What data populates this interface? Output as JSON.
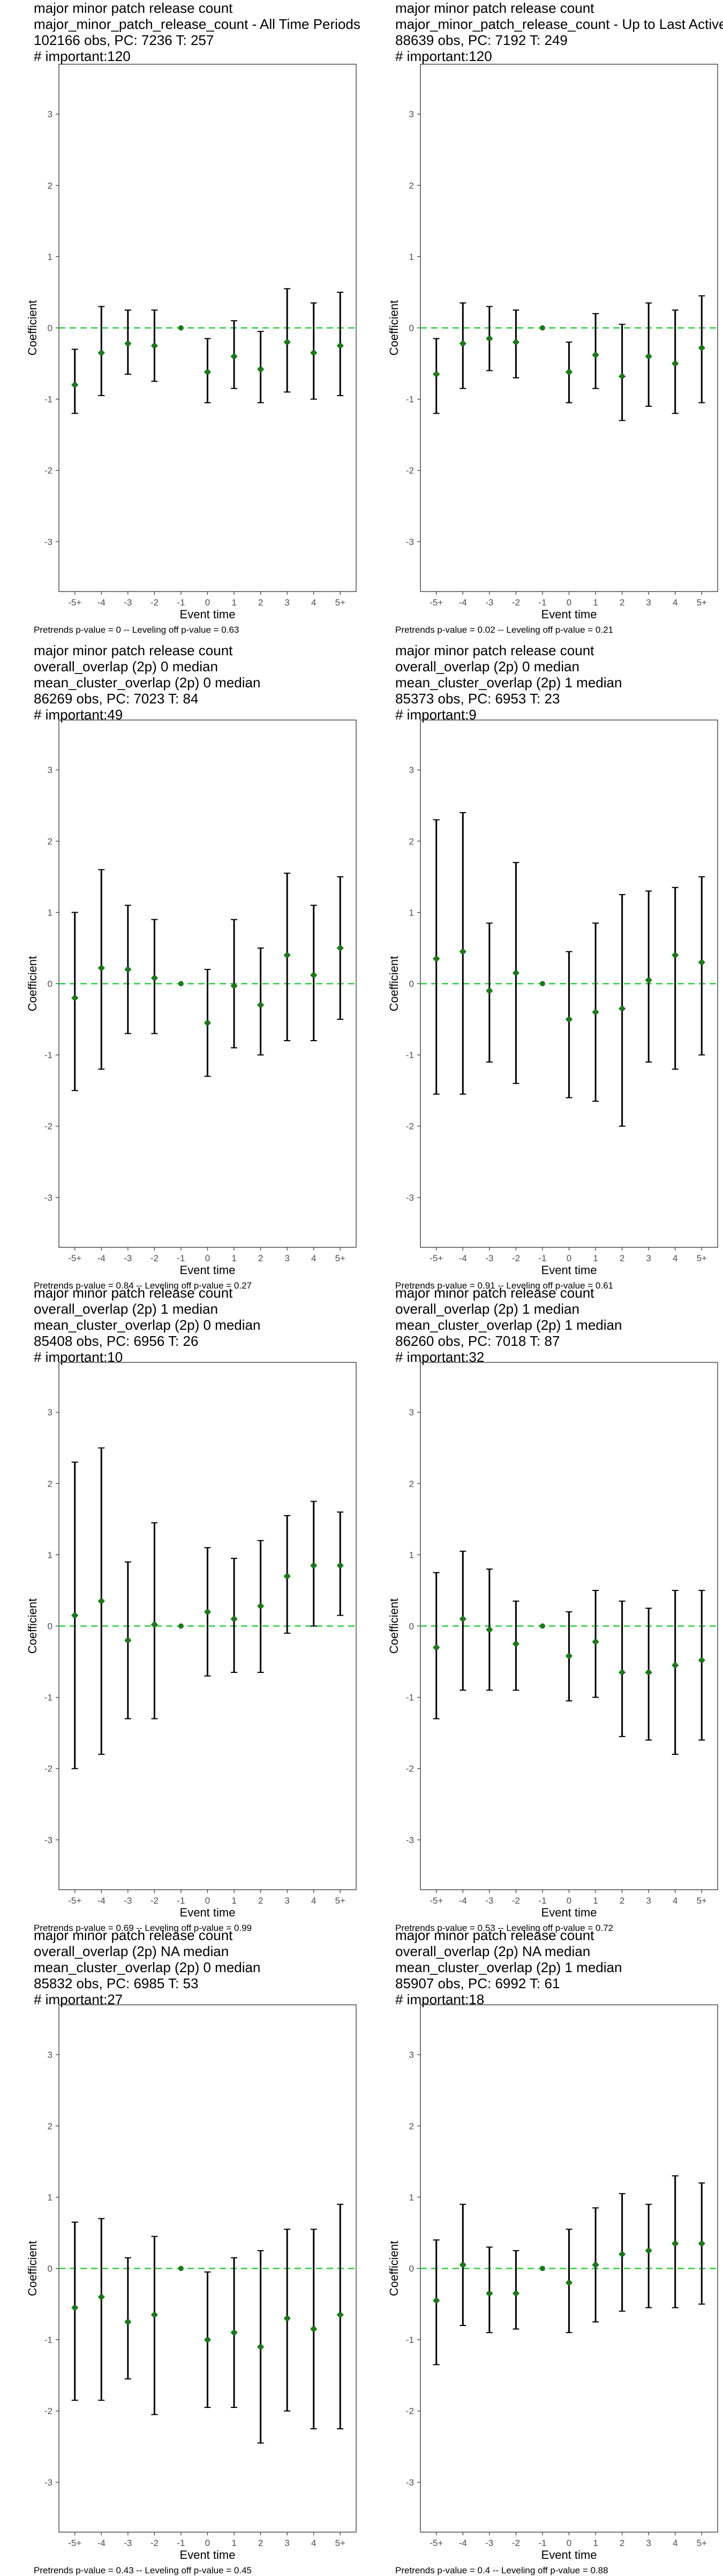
{
  "chart_data": [
    {
      "type": "scatter",
      "title_lines": [
        "major minor patch release count",
        "major_minor_patch_release_count - All Time Periods",
        "102166 obs, PC: 7236 T: 257",
        "# important:120"
      ],
      "xlabel": "Event time",
      "ylabel": "Coefficient",
      "categories": [
        "-5+",
        "-4",
        "-3",
        "-2",
        "-1",
        "0",
        "1",
        "2",
        "3",
        "4",
        "5+"
      ],
      "yticks": [
        -3,
        -2,
        -1,
        0,
        1,
        2,
        3
      ],
      "ylim": [
        -3.7,
        3.7
      ],
      "estimates": [
        -0.8,
        -0.35,
        -0.22,
        -0.25,
        0.0,
        -0.62,
        -0.4,
        -0.58,
        -0.2,
        -0.35,
        -0.25
      ],
      "ci_lower": [
        -1.2,
        -0.95,
        -0.65,
        -0.75,
        0.0,
        -1.05,
        -0.85,
        -1.05,
        -0.9,
        -1.0,
        -0.95
      ],
      "ci_upper": [
        -0.3,
        0.3,
        0.25,
        0.25,
        0.0,
        -0.15,
        0.1,
        -0.05,
        0.55,
        0.35,
        0.5
      ],
      "caption": "Pretrends p-value = 0 -- Leveling off p-value = 0.63"
    },
    {
      "type": "scatter",
      "title_lines": [
        "major minor patch release count",
        "major_minor_patch_release_count - Up to Last Active Period",
        "88639 obs, PC: 7192 T: 249",
        "# important:120"
      ],
      "xlabel": "Event time",
      "ylabel": "Coefficient",
      "categories": [
        "-5+",
        "-4",
        "-3",
        "-2",
        "-1",
        "0",
        "1",
        "2",
        "3",
        "4",
        "5+"
      ],
      "yticks": [
        -3,
        -2,
        -1,
        0,
        1,
        2,
        3
      ],
      "ylim": [
        -3.7,
        3.7
      ],
      "estimates": [
        -0.65,
        -0.22,
        -0.15,
        -0.2,
        0.0,
        -0.62,
        -0.38,
        -0.68,
        -0.4,
        -0.5,
        -0.28
      ],
      "ci_lower": [
        -1.2,
        -0.85,
        -0.6,
        -0.7,
        0.0,
        -1.05,
        -0.85,
        -1.3,
        -1.1,
        -1.2,
        -1.05
      ],
      "ci_upper": [
        -0.15,
        0.35,
        0.3,
        0.25,
        0.0,
        -0.2,
        0.2,
        0.05,
        0.35,
        0.25,
        0.45
      ],
      "caption": "Pretrends p-value = 0.02 -- Leveling off p-value = 0.21"
    },
    {
      "type": "scatter",
      "title_lines": [
        "major minor patch release count",
        "overall_overlap (2p) 0 median",
        "mean_cluster_overlap (2p) 0 median",
        "86269 obs, PC: 7023 T: 84",
        "# important:49"
      ],
      "xlabel": "Event time",
      "ylabel": "Coefficient",
      "categories": [
        "-5+",
        "-4",
        "-3",
        "-2",
        "-1",
        "0",
        "1",
        "2",
        "3",
        "4",
        "5+"
      ],
      "yticks": [
        -3,
        -2,
        -1,
        0,
        1,
        2,
        3
      ],
      "ylim": [
        -3.7,
        3.7
      ],
      "estimates": [
        -0.2,
        0.22,
        0.2,
        0.08,
        0.0,
        -0.55,
        -0.03,
        -0.3,
        0.4,
        0.12,
        0.5
      ],
      "ci_lower": [
        -1.5,
        -1.2,
        -0.7,
        -0.7,
        0.0,
        -1.3,
        -0.9,
        -1.0,
        -0.8,
        -0.8,
        -0.5
      ],
      "ci_upper": [
        1.0,
        1.6,
        1.1,
        0.9,
        0.0,
        0.2,
        0.9,
        0.5,
        1.55,
        1.1,
        1.5
      ],
      "caption": "Pretrends p-value = 0.84 -- Leveling off p-value = 0.27"
    },
    {
      "type": "scatter",
      "title_lines": [
        "major minor patch release count",
        "overall_overlap (2p) 0 median",
        "mean_cluster_overlap (2p) 1 median",
        "85373 obs, PC: 6953 T: 23",
        "# important:9"
      ],
      "xlabel": "Event time",
      "ylabel": "Coefficient",
      "categories": [
        "-5+",
        "-4",
        "-3",
        "-2",
        "-1",
        "0",
        "1",
        "2",
        "3",
        "4",
        "5+"
      ],
      "yticks": [
        -3,
        -2,
        -1,
        0,
        1,
        2,
        3
      ],
      "ylim": [
        -3.7,
        3.7
      ],
      "estimates": [
        0.35,
        0.45,
        -0.1,
        0.15,
        0.0,
        -0.5,
        -0.4,
        -0.35,
        0.05,
        0.4,
        0.3
      ],
      "ci_lower": [
        -1.55,
        -1.55,
        -1.1,
        -1.4,
        0.0,
        -1.6,
        -1.65,
        -2.0,
        -1.1,
        -1.2,
        -1.0
      ],
      "ci_upper": [
        2.3,
        2.4,
        0.85,
        1.7,
        0.0,
        0.45,
        0.85,
        1.25,
        1.3,
        1.35,
        1.5
      ],
      "caption": "Pretrends p-value = 0.91 -- Leveling off p-value = 0.61"
    },
    {
      "type": "scatter",
      "title_lines": [
        "major minor patch release count",
        "overall_overlap (2p) 1 median",
        "mean_cluster_overlap (2p) 0 median",
        "85408 obs, PC: 6956 T: 26",
        "# important:10"
      ],
      "xlabel": "Event time",
      "ylabel": "Coefficient",
      "categories": [
        "-5+",
        "-4",
        "-3",
        "-2",
        "-1",
        "0",
        "1",
        "2",
        "3",
        "4",
        "5+"
      ],
      "yticks": [
        -3,
        -2,
        -1,
        0,
        1,
        2,
        3
      ],
      "ylim": [
        -3.7,
        3.7
      ],
      "estimates": [
        0.15,
        0.35,
        -0.2,
        0.02,
        0.0,
        0.2,
        0.1,
        0.28,
        0.7,
        0.85,
        0.85
      ],
      "ci_lower": [
        -2.0,
        -1.8,
        -1.3,
        -1.3,
        0.0,
        -0.7,
        -0.65,
        -0.65,
        -0.1,
        0.0,
        0.15
      ],
      "ci_upper": [
        2.3,
        2.5,
        0.9,
        1.45,
        0.0,
        1.1,
        0.95,
        1.2,
        1.55,
        1.75,
        1.6
      ],
      "caption": "Pretrends p-value = 0.69 -- Leveling off p-value = 0.99"
    },
    {
      "type": "scatter",
      "title_lines": [
        "major minor patch release count",
        "overall_overlap (2p) 1 median",
        "mean_cluster_overlap (2p) 1 median",
        "86260 obs, PC: 7018 T: 87",
        "# important:32"
      ],
      "xlabel": "Event time",
      "ylabel": "Coefficient",
      "categories": [
        "-5+",
        "-4",
        "-3",
        "-2",
        "-1",
        "0",
        "1",
        "2",
        "3",
        "4",
        "5+"
      ],
      "yticks": [
        -3,
        -2,
        -1,
        0,
        1,
        2,
        3
      ],
      "ylim": [
        -3.7,
        3.7
      ],
      "estimates": [
        -0.3,
        0.1,
        -0.05,
        -0.25,
        0.0,
        -0.42,
        -0.22,
        -0.65,
        -0.65,
        -0.55,
        -0.48
      ],
      "ci_lower": [
        -1.3,
        -0.9,
        -0.9,
        -0.9,
        0.0,
        -1.05,
        -1.0,
        -1.55,
        -1.6,
        -1.8,
        -1.6
      ],
      "ci_upper": [
        0.75,
        1.05,
        0.8,
        0.35,
        0.0,
        0.2,
        0.5,
        0.35,
        0.25,
        0.5,
        0.5
      ],
      "caption": "Pretrends p-value = 0.53 -- Leveling off p-value = 0.72"
    },
    {
      "type": "scatter",
      "title_lines": [
        "major minor patch release count",
        "overall_overlap (2p) NA median",
        "mean_cluster_overlap (2p) 0 median",
        "85832 obs, PC: 6985 T: 53",
        "# important:27"
      ],
      "xlabel": "Event time",
      "ylabel": "Coefficient",
      "categories": [
        "-5+",
        "-4",
        "-3",
        "-2",
        "-1",
        "0",
        "1",
        "2",
        "3",
        "4",
        "5+"
      ],
      "yticks": [
        -3,
        -2,
        -1,
        0,
        1,
        2,
        3
      ],
      "ylim": [
        -3.7,
        3.7
      ],
      "estimates": [
        -0.55,
        -0.4,
        -0.75,
        -0.65,
        0.0,
        -1.0,
        -0.9,
        -1.1,
        -0.7,
        -0.85,
        -0.65
      ],
      "ci_lower": [
        -1.85,
        -1.85,
        -1.55,
        -2.05,
        0.0,
        -1.95,
        -1.95,
        -2.45,
        -2.0,
        -2.25,
        -2.25
      ],
      "ci_upper": [
        0.65,
        0.7,
        0.15,
        0.45,
        0.0,
        -0.05,
        0.15,
        0.25,
        0.55,
        0.55,
        0.9
      ],
      "caption": "Pretrends p-value = 0.43 -- Leveling off p-value = 0.45"
    },
    {
      "type": "scatter",
      "title_lines": [
        "major minor patch release count",
        "overall_overlap (2p) NA median",
        "mean_cluster_overlap (2p) 1 median",
        "85907 obs, PC: 6992 T: 61",
        "# important:18"
      ],
      "xlabel": "Event time",
      "ylabel": "Coefficient",
      "categories": [
        "-5+",
        "-4",
        "-3",
        "-2",
        "-1",
        "0",
        "1",
        "2",
        "3",
        "4",
        "5+"
      ],
      "yticks": [
        -3,
        -2,
        -1,
        0,
        1,
        2,
        3
      ],
      "ylim": [
        -3.7,
        3.7
      ],
      "estimates": [
        -0.45,
        0.05,
        -0.35,
        -0.35,
        0.0,
        -0.2,
        0.05,
        0.2,
        0.25,
        0.35,
        0.35
      ],
      "ci_lower": [
        -1.35,
        -0.8,
        -0.9,
        -0.85,
        0.0,
        -0.9,
        -0.75,
        -0.6,
        -0.55,
        -0.55,
        -0.5
      ],
      "ci_upper": [
        0.4,
        0.9,
        0.3,
        0.25,
        0.0,
        0.55,
        0.85,
        1.05,
        0.9,
        1.3,
        1.2
      ],
      "caption": "Pretrends p-value = 0.4 -- Leveling off p-value = 0.88"
    }
  ],
  "colors": {
    "point": "#1a7a1a",
    "zero_line": "#2ecc40",
    "errorbar": "#000000",
    "panel_border": "#333333"
  }
}
